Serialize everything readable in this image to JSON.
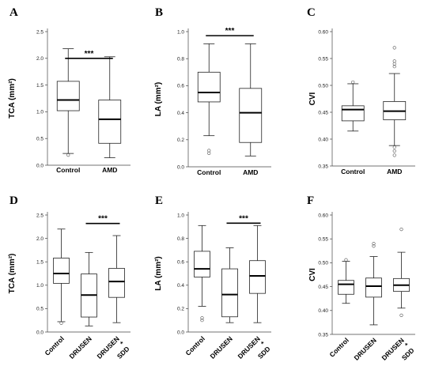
{
  "chart_data": [
    {
      "type": "boxplot",
      "panel": "A",
      "ylabel": "TCA (mm²)",
      "ylim": [
        0,
        2.5
      ],
      "yticks": [
        "0.0",
        "0.5",
        "1.0",
        "1.5",
        "2.0",
        "2.5"
      ],
      "yticks_values": [
        0,
        0.5,
        1.0,
        1.5,
        2.0,
        2.5
      ],
      "categories": [
        "Control",
        "AMD"
      ],
      "boxes": [
        {
          "min": 0.22,
          "q1": 1.02,
          "median": 1.22,
          "q3": 1.57,
          "max": 2.18,
          "outliers": [
            0.19
          ]
        },
        {
          "min": 0.14,
          "q1": 0.41,
          "median": 0.86,
          "q3": 1.22,
          "max": 2.03,
          "outliers": []
        }
      ],
      "significance": [
        {
          "from": 0,
          "to": 1,
          "label": "***",
          "y": 2.0
        }
      ]
    },
    {
      "type": "boxplot",
      "panel": "B",
      "ylabel": "LA (mm²)",
      "ylim": [
        0,
        1.0
      ],
      "yticks": [
        "0.0",
        "0.2",
        "0.4",
        "0.6",
        "0.8",
        "1.0"
      ],
      "yticks_values": [
        0,
        0.2,
        0.4,
        0.6,
        0.8,
        1.0
      ],
      "categories": [
        "Control",
        "AMD"
      ],
      "boxes": [
        {
          "min": 0.23,
          "q1": 0.48,
          "median": 0.55,
          "q3": 0.7,
          "max": 0.91,
          "outliers": [
            0.12,
            0.1
          ]
        },
        {
          "min": 0.08,
          "q1": 0.18,
          "median": 0.4,
          "q3": 0.58,
          "max": 0.91,
          "outliers": []
        }
      ],
      "significance": [
        {
          "from": 0,
          "to": 1,
          "label": "***",
          "y": 0.97
        }
      ]
    },
    {
      "type": "boxplot",
      "panel": "C",
      "ylabel": "CVI",
      "ylim": [
        0.35,
        0.6
      ],
      "yticks": [
        "0.35",
        "0.40",
        "0.45",
        "0.50",
        "0.55",
        "0.60"
      ],
      "yticks_values": [
        0.35,
        0.4,
        0.45,
        0.5,
        0.55,
        0.6
      ],
      "categories": [
        "Control",
        "AMD"
      ],
      "boxes": [
        {
          "min": 0.415,
          "q1": 0.434,
          "median": 0.455,
          "q3": 0.462,
          "max": 0.503,
          "outliers": [
            0.506
          ]
        },
        {
          "min": 0.388,
          "q1": 0.436,
          "median": 0.452,
          "q3": 0.47,
          "max": 0.522,
          "outliers": [
            0.57,
            0.545,
            0.54,
            0.535,
            0.385,
            0.378,
            0.37
          ]
        }
      ],
      "significance": []
    },
    {
      "type": "boxplot",
      "panel": "D",
      "ylabel": "TCA (mm²)",
      "ylim": [
        0,
        2.5
      ],
      "yticks": [
        "0.0",
        "0.5",
        "1.0",
        "1.5",
        "2.0",
        "2.5"
      ],
      "yticks_values": [
        0,
        0.5,
        1.0,
        1.5,
        2.0,
        2.5
      ],
      "categories": [
        "Control",
        "DRUSEN",
        "DRUSEN * SDD"
      ],
      "category_lines": [
        [
          "Control"
        ],
        [
          "DRUSEN"
        ],
        [
          "DRUSEN",
          "*",
          "SDD"
        ]
      ],
      "boxes": [
        {
          "min": 0.22,
          "q1": 1.04,
          "median": 1.25,
          "q3": 1.58,
          "max": 2.2,
          "outliers": [
            0.19
          ]
        },
        {
          "min": 0.13,
          "q1": 0.32,
          "median": 0.79,
          "q3": 1.24,
          "max": 1.7,
          "outliers": []
        },
        {
          "min": 0.2,
          "q1": 0.74,
          "median": 1.08,
          "q3": 1.36,
          "max": 2.06,
          "outliers": []
        }
      ],
      "significance": [
        {
          "from": 1,
          "to": 2,
          "label": "***",
          "y": 2.32
        }
      ]
    },
    {
      "type": "boxplot",
      "panel": "E",
      "ylabel": "LA (mm²)",
      "ylim": [
        0,
        1.0
      ],
      "yticks": [
        "0.0",
        "0.2",
        "0.4",
        "0.6",
        "0.8",
        "1.0"
      ],
      "yticks_values": [
        0,
        0.2,
        0.4,
        0.6,
        0.8,
        1.0
      ],
      "categories": [
        "Control",
        "DRUSEN",
        "DRUSEN * SDD"
      ],
      "category_lines": [
        [
          "Control"
        ],
        [
          "DRUSEN"
        ],
        [
          "DRUSEN",
          "*",
          "SDD"
        ]
      ],
      "boxes": [
        {
          "min": 0.22,
          "q1": 0.47,
          "median": 0.54,
          "q3": 0.69,
          "max": 0.91,
          "outliers": [
            0.12,
            0.1
          ]
        },
        {
          "min": 0.08,
          "q1": 0.13,
          "median": 0.32,
          "q3": 0.54,
          "max": 0.72,
          "outliers": []
        },
        {
          "min": 0.08,
          "q1": 0.33,
          "median": 0.48,
          "q3": 0.61,
          "max": 0.91,
          "outliers": []
        }
      ],
      "significance": [
        {
          "from": 1,
          "to": 2,
          "label": "***",
          "y": 0.93
        }
      ]
    },
    {
      "type": "boxplot",
      "panel": "F",
      "ylabel": "CVI",
      "ylim": [
        0.35,
        0.6
      ],
      "yticks": [
        "0.35",
        "0.40",
        "0.45",
        "0.50",
        "0.55",
        "0.60"
      ],
      "yticks_values": [
        0.35,
        0.4,
        0.45,
        0.5,
        0.55,
        0.6
      ],
      "categories": [
        "Control",
        "DRUSEN",
        "DRUSEN * SDD"
      ],
      "category_lines": [
        [
          "Control"
        ],
        [
          "DRUSEN"
        ],
        [
          "DRUSEN",
          "*",
          "SDD"
        ]
      ],
      "boxes": [
        {
          "min": 0.415,
          "q1": 0.434,
          "median": 0.455,
          "q3": 0.463,
          "max": 0.503,
          "outliers": [
            0.506
          ]
        },
        {
          "min": 0.37,
          "q1": 0.428,
          "median": 0.451,
          "q3": 0.468,
          "max": 0.513,
          "outliers": [
            0.54,
            0.535
          ]
        },
        {
          "min": 0.405,
          "q1": 0.44,
          "median": 0.453,
          "q3": 0.467,
          "max": 0.522,
          "outliers": [
            0.57,
            0.39
          ]
        }
      ],
      "significance": []
    }
  ]
}
